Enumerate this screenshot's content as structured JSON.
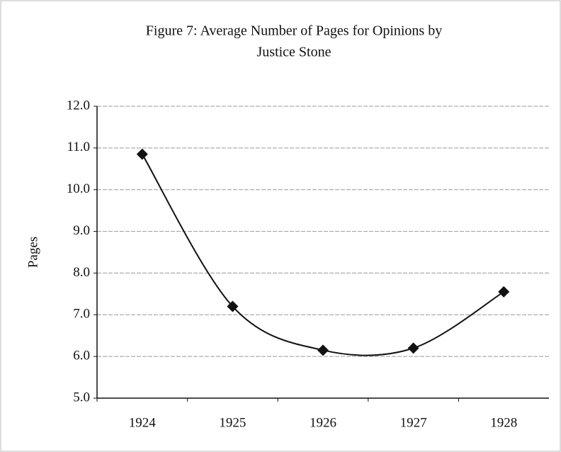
{
  "chart_data": {
    "type": "line",
    "title": [
      "Figure 7: Average Number of Pages for Opinions by",
      "Justice Stone"
    ],
    "y_label": "Pages",
    "categories": [
      "1924",
      "1925",
      "1926",
      "1927",
      "1928"
    ],
    "series": [
      {
        "name": "Pages",
        "color": "#111111",
        "values": [
          10.85,
          7.2,
          6.15,
          6.2,
          7.55
        ]
      }
    ],
    "ylim": [
      5,
      12
    ],
    "yticks": [
      {
        "value": 5,
        "label": "5.0"
      },
      {
        "value": 6,
        "label": "6.0"
      },
      {
        "value": 7,
        "label": "7.0"
      },
      {
        "value": 8,
        "label": "8.0"
      },
      {
        "value": 9,
        "label": "9.0"
      },
      {
        "value": 10,
        "label": "10.0"
      },
      {
        "value": 11,
        "label": "11.0"
      },
      {
        "value": 12,
        "label": "12.0"
      }
    ],
    "grid": true,
    "smooth": true
  }
}
